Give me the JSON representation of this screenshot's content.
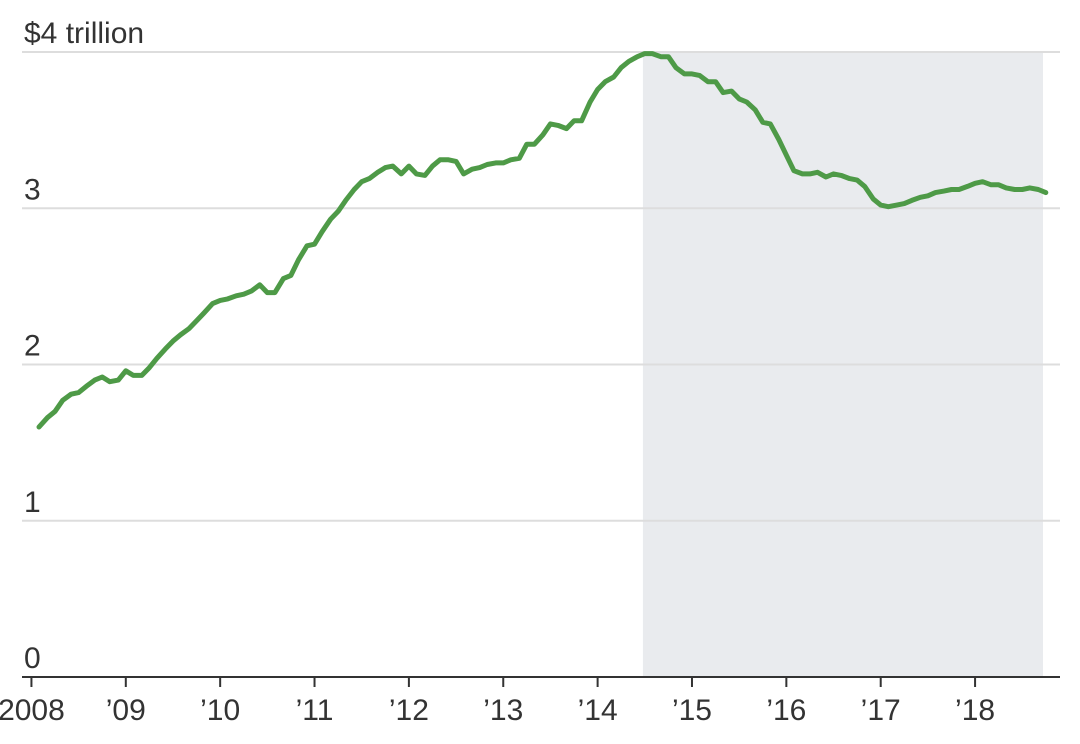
{
  "chart_data": {
    "type": "line",
    "title": "",
    "xlabel": "",
    "ylabel": "",
    "xlim": [
      2007.9,
      2018.9
    ],
    "ylim": [
      0,
      4
    ],
    "grid": true,
    "y_ticks": [
      {
        "value": 0,
        "label": "0"
      },
      {
        "value": 1,
        "label": "1"
      },
      {
        "value": 2,
        "label": "2"
      },
      {
        "value": 3,
        "label": "3"
      },
      {
        "value": 4,
        "label": "$4 trillion"
      }
    ],
    "x_ticks": [
      {
        "value": 2008,
        "label": "2008"
      },
      {
        "value": 2009,
        "label": "’09"
      },
      {
        "value": 2010,
        "label": "’10"
      },
      {
        "value": 2011,
        "label": "’11"
      },
      {
        "value": 2012,
        "label": "’12"
      },
      {
        "value": 2013,
        "label": "’13"
      },
      {
        "value": 2014,
        "label": "’14"
      },
      {
        "value": 2015,
        "label": "’15"
      },
      {
        "value": 2016,
        "label": "’16"
      },
      {
        "value": 2017,
        "label": "’17"
      },
      {
        "value": 2018,
        "label": "’18"
      }
    ],
    "shaded_region": {
      "x_start": 2014.48,
      "x_end": 2018.72,
      "color": "#e9ebee"
    },
    "colors": {
      "line": "#4e9a47",
      "grid": "#dddddd",
      "axis": "#333333"
    },
    "series": [
      {
        "x": [
          2008.08,
          2008.17,
          2008.25,
          2008.33,
          2008.42,
          2008.5,
          2008.58,
          2008.67,
          2008.75,
          2008.83,
          2008.92,
          2009.0,
          2009.08,
          2009.17,
          2009.25,
          2009.33,
          2009.42,
          2009.5,
          2009.58,
          2009.67,
          2009.75,
          2009.83,
          2009.92,
          2010.0,
          2010.08,
          2010.17,
          2010.25,
          2010.33,
          2010.42,
          2010.5,
          2010.58,
          2010.67,
          2010.75,
          2010.83,
          2010.92,
          2011.0,
          2011.08,
          2011.17,
          2011.25,
          2011.33,
          2011.42,
          2011.5,
          2011.58,
          2011.67,
          2011.75,
          2011.83,
          2011.92,
          2012.0,
          2012.08,
          2012.17,
          2012.25,
          2012.33,
          2012.42,
          2012.5,
          2012.58,
          2012.67,
          2012.75,
          2012.83,
          2012.92,
          2013.0,
          2013.08,
          2013.17,
          2013.25,
          2013.33,
          2013.42,
          2013.5,
          2013.58,
          2013.67,
          2013.75,
          2013.83,
          2013.92,
          2014.0,
          2014.08,
          2014.17,
          2014.25,
          2014.33,
          2014.42,
          2014.5,
          2014.58,
          2014.67,
          2014.75,
          2014.83,
          2014.92,
          2015.0,
          2015.08,
          2015.17,
          2015.25,
          2015.33,
          2015.42,
          2015.5,
          2015.58,
          2015.67,
          2015.75,
          2015.83,
          2015.92,
          2016.0,
          2016.08,
          2016.17,
          2016.25,
          2016.33,
          2016.42,
          2016.5,
          2016.58,
          2016.67,
          2016.75,
          2016.83,
          2016.92,
          2017.0,
          2017.08,
          2017.17,
          2017.25,
          2017.33,
          2017.42,
          2017.5,
          2017.58,
          2017.67,
          2017.75,
          2017.83,
          2017.92,
          2018.0,
          2018.08,
          2018.17,
          2018.25,
          2018.33,
          2018.42,
          2018.5,
          2018.58,
          2018.67,
          2018.75
        ],
        "values": [
          1.6,
          1.66,
          1.7,
          1.77,
          1.81,
          1.82,
          1.86,
          1.9,
          1.92,
          1.89,
          1.9,
          1.96,
          1.93,
          1.93,
          1.98,
          2.04,
          2.1,
          2.15,
          2.19,
          2.23,
          2.28,
          2.33,
          2.39,
          2.41,
          2.42,
          2.44,
          2.45,
          2.47,
          2.51,
          2.46,
          2.46,
          2.55,
          2.57,
          2.67,
          2.76,
          2.77,
          2.85,
          2.93,
          2.98,
          3.05,
          3.12,
          3.17,
          3.19,
          3.23,
          3.26,
          3.27,
          3.22,
          3.27,
          3.22,
          3.21,
          3.27,
          3.31,
          3.31,
          3.3,
          3.22,
          3.25,
          3.26,
          3.28,
          3.29,
          3.29,
          3.31,
          3.32,
          3.41,
          3.41,
          3.47,
          3.54,
          3.53,
          3.51,
          3.56,
          3.56,
          3.68,
          3.76,
          3.81,
          3.84,
          3.9,
          3.94,
          3.97,
          3.99,
          3.99,
          3.97,
          3.97,
          3.9,
          3.86,
          3.86,
          3.85,
          3.81,
          3.81,
          3.74,
          3.75,
          3.7,
          3.68,
          3.63,
          3.55,
          3.54,
          3.44,
          3.34,
          3.24,
          3.22,
          3.22,
          3.23,
          3.2,
          3.22,
          3.21,
          3.19,
          3.18,
          3.14,
          3.06,
          3.02,
          3.01,
          3.02,
          3.03,
          3.05,
          3.07,
          3.08,
          3.1,
          3.11,
          3.12,
          3.12,
          3.14,
          3.16,
          3.17,
          3.15,
          3.15,
          3.13,
          3.12,
          3.12,
          3.13,
          3.12,
          3.1
        ]
      }
    ]
  }
}
